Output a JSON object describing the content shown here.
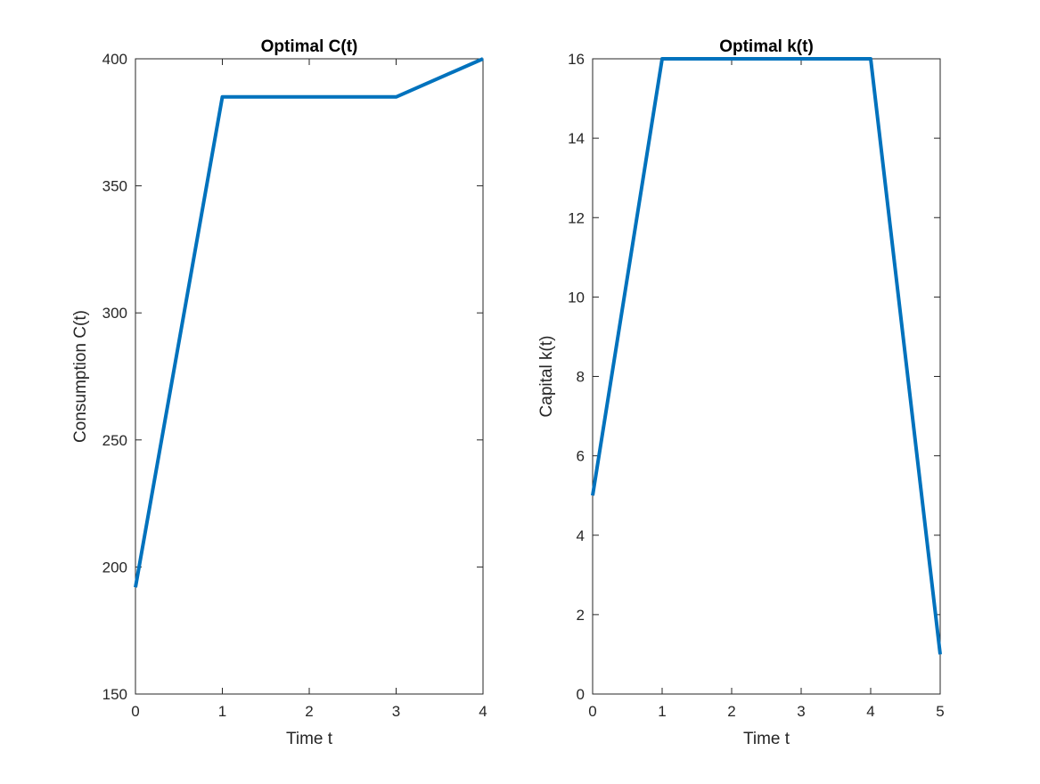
{
  "figure": {
    "background": "#ffffff",
    "axis_color": "#262626",
    "line_color": "#0072bd"
  },
  "chart_data": [
    {
      "type": "line",
      "title": "Optimal C(t)",
      "xlabel": "Time t",
      "ylabel": "Consumption C(t)",
      "xlim": [
        0,
        4
      ],
      "ylim": [
        150,
        400
      ],
      "xticks": [
        0,
        1,
        2,
        3,
        4
      ],
      "yticks": [
        150,
        200,
        250,
        300,
        350,
        400
      ],
      "xtick_labels": [
        "0",
        "1",
        "2",
        "3",
        "4"
      ],
      "ytick_labels": [
        "150",
        "200",
        "250",
        "300",
        "350",
        "400"
      ],
      "grid": false,
      "series": [
        {
          "x": [
            0,
            1,
            2,
            3,
            4
          ],
          "y": [
            192,
            385,
            385,
            385,
            400
          ],
          "color": "#0072bd"
        }
      ]
    },
    {
      "type": "line",
      "title": "Optimal k(t)",
      "xlabel": "Time t",
      "ylabel": "Capital k(t)",
      "xlim": [
        0,
        5
      ],
      "ylim": [
        0,
        16
      ],
      "xticks": [
        0,
        1,
        2,
        3,
        4,
        5
      ],
      "yticks": [
        0,
        2,
        4,
        6,
        8,
        10,
        12,
        14,
        16
      ],
      "xtick_labels": [
        "0",
        "1",
        "2",
        "3",
        "4",
        "5"
      ],
      "ytick_labels": [
        "0",
        "2",
        "4",
        "6",
        "8",
        "10",
        "12",
        "14",
        "16"
      ],
      "grid": false,
      "series": [
        {
          "x": [
            0,
            1,
            2,
            3,
            4,
            5
          ],
          "y": [
            5,
            16,
            16,
            16,
            16,
            1
          ],
          "color": "#0072bd"
        }
      ]
    }
  ]
}
